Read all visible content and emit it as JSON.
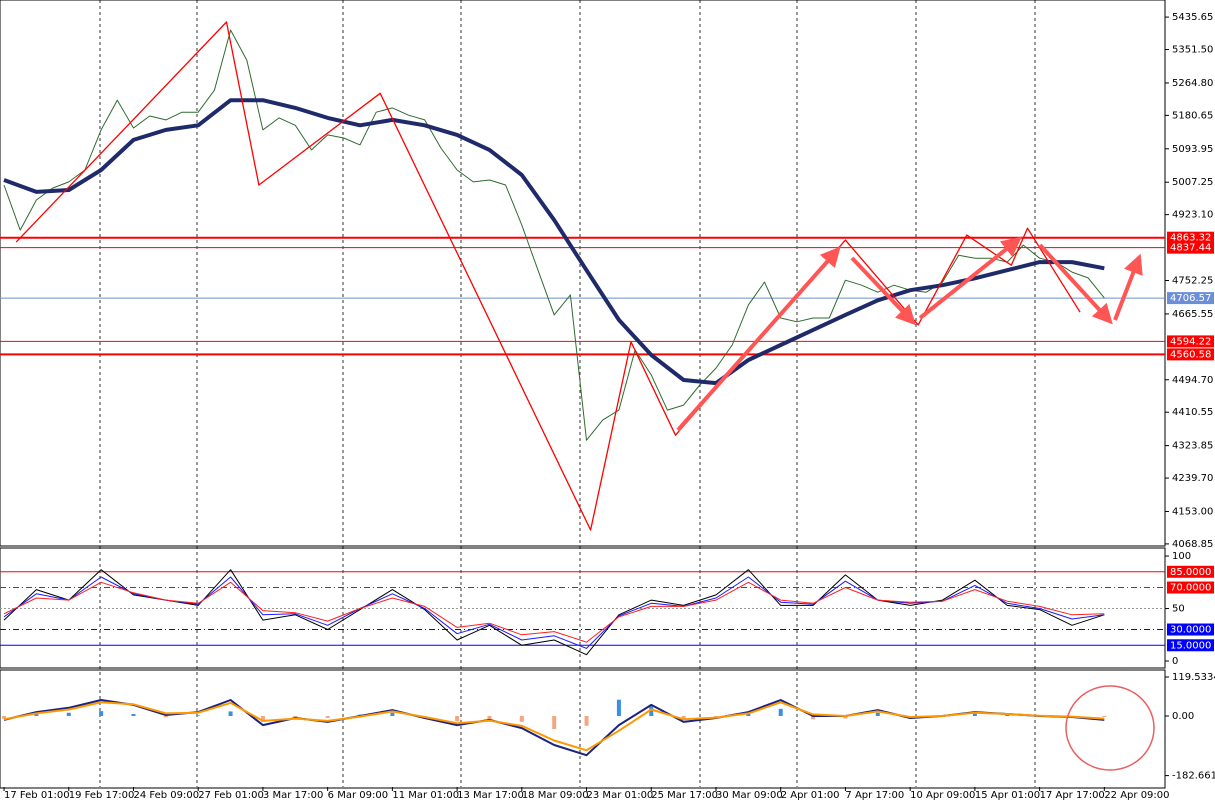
{
  "chart_data": [
    {
      "type": "line",
      "xlim": [
        -1,
        287
      ],
      "xticks": [
        {
          "value": 0,
          "label": "17 Feb 01:00"
        },
        {
          "value": 16,
          "label": "19 Feb 17:00"
        },
        {
          "value": 32,
          "label": "24 Feb 09:00"
        },
        {
          "value": 48,
          "label": "27 Feb 01:00"
        },
        {
          "value": 64,
          "label": "3 Mar 17:00"
        },
        {
          "value": 80,
          "label": "6 Mar 09:00"
        },
        {
          "value": 96,
          "label": "11 Mar 01:00"
        },
        {
          "value": 112,
          "label": "13 Mar 17:00"
        },
        {
          "value": 128,
          "label": "18 Mar 09:00"
        },
        {
          "value": 144,
          "label": "23 Mar 01:00"
        },
        {
          "value": 160,
          "label": "25 Mar 17:00"
        },
        {
          "value": 176,
          "label": "30 Mar 09:00"
        },
        {
          "value": 192,
          "label": "2 Apr 01:00"
        },
        {
          "value": 208,
          "label": "7 Apr 17:00"
        },
        {
          "value": 224,
          "label": "10 Apr 09:00"
        },
        {
          "value": 240,
          "label": "15 Apr 01:00"
        },
        {
          "value": 256,
          "label": "17 Apr 17:00"
        },
        {
          "value": 272,
          "label": "22 Apr 09:00"
        }
      ],
      "ylim": [
        4066,
        5480
      ],
      "yticks": [
        5435.65,
        {
          "value": 5351.5,
          "label": "5351.50"
        },
        {
          "value": 5264.8,
          "label": "5264.80"
        },
        5180.65,
        5093.95,
        5007.25,
        {
          "value": 4923.1,
          "label": "4923.10"
        },
        4752.25,
        4665.55,
        {
          "value": 4494.7,
          "label": "4494.70"
        },
        4410.55,
        4323.85,
        {
          "value": 4239.7,
          "label": "4239.70"
        },
        {
          "value": 4153,
          "label": "4153.00"
        },
        4068.85
      ],
      "levels": [
        {
          "value": 4863.32,
          "color": "#ff0000",
          "width": 2,
          "dash": "solid",
          "box": true
        },
        {
          "value": 4837.44,
          "color": "#ff0000",
          "width": 1,
          "dash": "solid",
          "box": true
        },
        {
          "value": 4706.57,
          "color": "#6a8fd8",
          "width": 1,
          "dash": "solid",
          "box": true
        },
        {
          "value": 4594.22,
          "color": "#ff0000",
          "width": 1,
          "dash": "solid",
          "box": true
        },
        {
          "value": 4560.58,
          "color": "#ff0000",
          "width": 2,
          "dash": "solid",
          "box": true
        }
      ],
      "series": [
        {
          "color": "#2f6b2f",
          "width": 1,
          "x": [
            0,
            4,
            8,
            12,
            16,
            20,
            24,
            28,
            32,
            36,
            40,
            44,
            48,
            52,
            56,
            60,
            64,
            68,
            72,
            76,
            80,
            84,
            88,
            92,
            96,
            100,
            104,
            108,
            112,
            116,
            120,
            124,
            128,
            132,
            136,
            140,
            144,
            148,
            152,
            156,
            160,
            164,
            168,
            172,
            176,
            180,
            184,
            188,
            192,
            196,
            200,
            204,
            208,
            212,
            216,
            220,
            224,
            228,
            232,
            236,
            240,
            244,
            248,
            252,
            256,
            260,
            264,
            268,
            272
          ],
          "values": [
            5000,
            4883,
            4961,
            4992,
            5008,
            5039,
            5143,
            5220,
            5148,
            5179,
            5169,
            5189,
            5189,
            5246,
            5402,
            5324,
            5143,
            5174,
            5155,
            5091,
            5130,
            5122,
            5104,
            5189,
            5200,
            5181,
            5169,
            5096,
            5039,
            5008,
            5013,
            5000,
            4896,
            4779,
            4663,
            4715,
            4338,
            4390,
            4416,
            4572,
            4507,
            4416,
            4429,
            4481,
            4525,
            4585,
            4689,
            4748,
            4655,
            4645,
            4655,
            4655,
            4753,
            4740,
            4722,
            4740,
            4727,
            4722,
            4748,
            4818,
            4810,
            4810,
            4800,
            4844,
            4810,
            4800,
            4774,
            4759,
            4707
          ]
        },
        {
          "color": "#1f2a6b",
          "width": 4,
          "x": [
            0,
            8,
            16,
            24,
            32,
            40,
            48,
            56,
            64,
            72,
            80,
            88,
            96,
            104,
            112,
            120,
            128,
            136,
            144,
            152,
            160,
            168,
            176,
            184,
            192,
            200,
            208,
            216,
            224,
            232,
            240,
            248,
            256,
            264,
            272
          ],
          "values": [
            5013,
            4982,
            4987,
            5039,
            5117,
            5143,
            5155,
            5220,
            5220,
            5200,
            5174,
            5155,
            5169,
            5155,
            5130,
            5091,
            5026,
            4909,
            4779,
            4650,
            4559,
            4494,
            4486,
            4546,
            4585,
            4624,
            4663,
            4701,
            4727,
            4740,
            4758,
            4779,
            4800,
            4800,
            4784
          ]
        },
        {
          "color": "#ff0000",
          "width": 1.3,
          "x": [
            3,
            55,
            63,
            93,
            145,
            155,
            166,
            208,
            226,
            238,
            249,
            253,
            266
          ],
          "values": [
            4852,
            5423,
            5000,
            5238,
            4105,
            4593,
            4351,
            4857,
            4637,
            4870,
            4792,
            4888,
            4670
          ]
        }
      ]
    },
    {
      "type": "line",
      "ylim": [
        -5.7,
        106.7
      ],
      "yticks": [
        100,
        0
      ],
      "levels": [
        {
          "value": 85,
          "label": "85.0000",
          "color": "#ff0000",
          "width": 1,
          "dash": "solid",
          "box": true
        },
        {
          "value": 70,
          "label": "70.0000",
          "color": "#ff0000",
          "width": 1,
          "dash": "dashdot",
          "box": true
        },
        {
          "value": 50,
          "color": "#999999",
          "width": 1,
          "dash": "dotted",
          "box": false
        },
        {
          "value": 30,
          "label": "30.0000",
          "color": "#0000ff",
          "width": 1,
          "dash": "dashdot",
          "box": true
        },
        {
          "value": 15,
          "label": "15.0000",
          "color": "#0000ff",
          "width": 1,
          "dash": "solid",
          "box": true
        }
      ],
      "x": [
        0,
        8,
        16,
        24,
        32,
        40,
        48,
        56,
        64,
        72,
        80,
        88,
        96,
        104,
        112,
        120,
        128,
        136,
        144,
        152,
        160,
        168,
        176,
        184,
        192,
        200,
        208,
        216,
        224,
        232,
        240,
        248,
        256,
        264,
        272
      ],
      "series": [
        {
          "color": "#000000",
          "width": 1,
          "values": [
            39,
            68,
            58,
            87,
            63,
            58,
            53,
            87,
            39,
            44,
            30,
            49,
            68,
            49,
            20,
            34,
            15,
            20,
            6,
            44,
            58,
            53,
            63,
            87,
            53,
            53,
            82,
            58,
            53,
            58,
            77,
            53,
            49,
            34,
            44
          ]
        },
        {
          "color": "#1a1aff",
          "width": 1,
          "values": [
            42,
            64,
            58,
            80,
            64,
            58,
            54,
            80,
            44,
            45,
            34,
            50,
            64,
            50,
            26,
            35,
            20,
            24,
            12,
            43,
            55,
            52,
            60,
            80,
            56,
            54,
            76,
            58,
            55,
            57,
            72,
            55,
            50,
            40,
            44
          ]
        },
        {
          "color": "#ff2020",
          "width": 1,
          "values": [
            45,
            60,
            58,
            75,
            65,
            58,
            55,
            75,
            48,
            46,
            38,
            50,
            60,
            52,
            32,
            36,
            25,
            28,
            18,
            42,
            52,
            52,
            58,
            75,
            58,
            55,
            70,
            58,
            56,
            57,
            68,
            57,
            52,
            44,
            45
          ]
        }
      ]
    },
    {
      "type": "bar",
      "ylim": [
        -217.6,
        137.9
      ],
      "yticks": [
        119.5334,
        {
          "value": 0,
          "label": "0.00"
        },
        -182.6615
      ],
      "x": [
        0,
        8,
        16,
        24,
        32,
        40,
        48,
        56,
        64,
        72,
        80,
        88,
        96,
        104,
        112,
        120,
        128,
        136,
        144,
        152,
        160,
        168,
        176,
        184,
        192,
        200,
        208,
        216,
        224,
        232,
        240,
        248,
        256,
        264,
        272
      ],
      "values": [
        -8,
        6,
        10,
        15,
        6,
        -4,
        2,
        14,
        -18,
        -8,
        -6,
        4,
        10,
        -6,
        -16,
        -10,
        -18,
        -40,
        -30,
        50,
        30,
        -12,
        -6,
        8,
        22,
        -10,
        -8,
        10,
        -6,
        -3,
        8,
        4,
        2,
        -2,
        -3
      ],
      "colors": [
        "#3a8ee6",
        "#f4a582"
      ],
      "series": [
        {
          "color": "#1a237e",
          "width": 2,
          "values": [
            -12,
            12,
            25,
            49,
            34,
            3,
            12,
            49,
            -28,
            -6,
            -18,
            0,
            18,
            -6,
            -28,
            -12,
            -37,
            -89,
            -120,
            -28,
            34,
            -18,
            -6,
            12,
            49,
            0,
            0,
            18,
            -6,
            0,
            12,
            6,
            0,
            -3,
            -12
          ]
        },
        {
          "color": "#ff9800",
          "width": 2,
          "values": [
            -10,
            8,
            20,
            42,
            36,
            8,
            10,
            40,
            -15,
            -8,
            -15,
            -2,
            14,
            -3,
            -22,
            -14,
            -30,
            -75,
            -105,
            -45,
            20,
            -10,
            -5,
            8,
            42,
            5,
            0,
            14,
            -3,
            0,
            10,
            6,
            1,
            -2,
            -8
          ]
        }
      ]
    }
  ]
}
